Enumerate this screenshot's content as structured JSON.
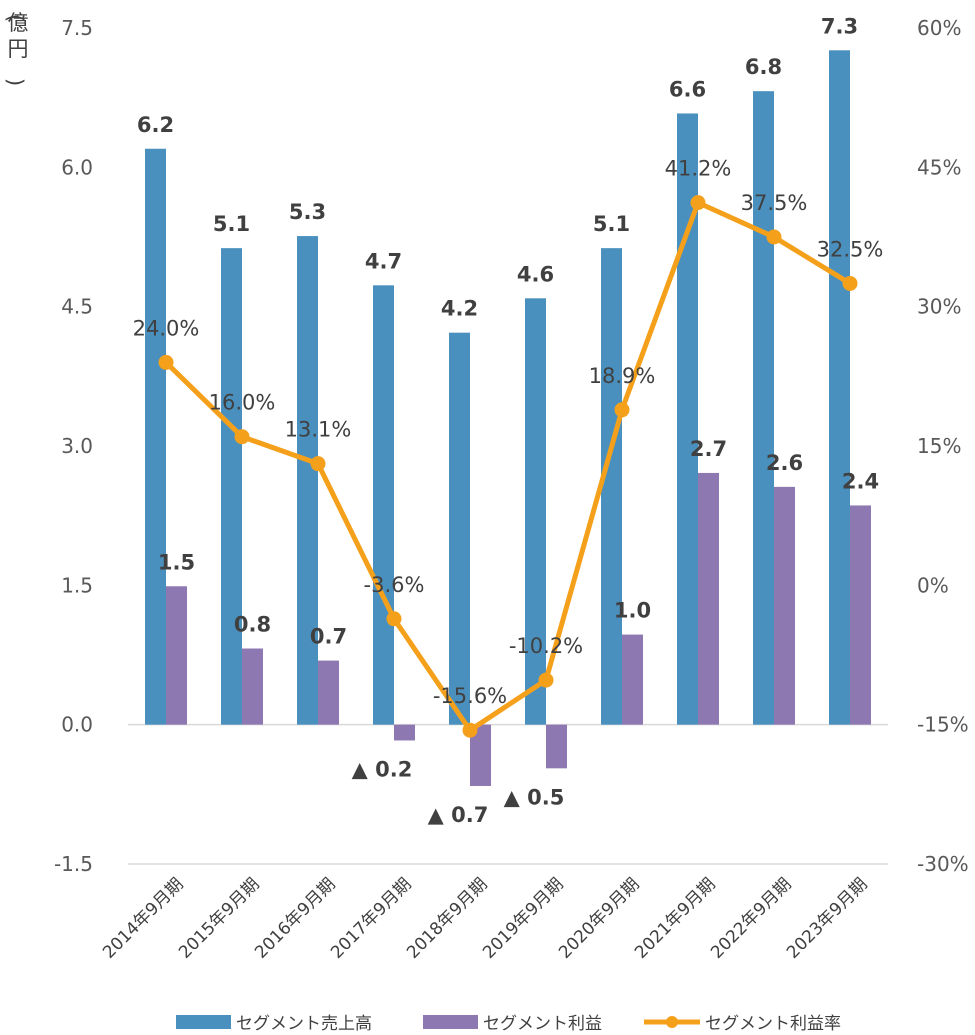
{
  "chart_data": {
    "type": "bar",
    "categories": [
      "2014年9月期",
      "2015年9月期",
      "2016年9月期",
      "2017年9月期",
      "2018年9月期",
      "2019年9月期",
      "2020年9月期",
      "2021年9月期",
      "2022年9月期",
      "2023年9月期"
    ],
    "y_unit_label": "億円",
    "left_axis": {
      "min": -1.5,
      "max": 7.5,
      "ticks": [
        "7.5",
        "6.0",
        "4.5",
        "3.0",
        "1.5",
        "0.0",
        "-1.5"
      ]
    },
    "right_axis": {
      "min": -30,
      "max": 60,
      "ticks": [
        "60%",
        "45%",
        "30%",
        "15%",
        "0%",
        "-15%",
        "-30%"
      ]
    },
    "series": [
      {
        "name": "セグメント売上高",
        "type": "bar",
        "axis": "left",
        "color": "#4A90BE",
        "values": [
          6.2,
          5.13,
          5.26,
          4.73,
          4.22,
          4.59,
          5.13,
          6.58,
          6.82,
          7.26
        ],
        "labels": [
          "6.2",
          "5.1",
          "5.3",
          "4.7",
          "4.2",
          "4.6",
          "5.1",
          "6.6",
          "6.8",
          "7.3"
        ]
      },
      {
        "name": "セグメント利益",
        "type": "bar",
        "axis": "left",
        "color": "#8E78B2",
        "values": [
          1.49,
          0.82,
          0.69,
          -0.17,
          -0.66,
          -0.47,
          0.97,
          2.71,
          2.56,
          2.36
        ],
        "labels": [
          "1.5",
          "0.8",
          "0.7",
          "▲ 0.2",
          "▲ 0.7",
          "▲ 0.5",
          "1.0",
          "2.7",
          "2.6",
          "2.4"
        ]
      },
      {
        "name": "セグメント利益率",
        "type": "line",
        "axis": "right",
        "color": "#F5A01A",
        "values": [
          24.0,
          16.0,
          13.1,
          -3.6,
          -15.6,
          -10.2,
          18.9,
          41.2,
          37.5,
          32.5
        ],
        "labels": [
          "24.0%",
          "16.0%",
          "13.1%",
          "-3.6%",
          "-15.6%",
          "-10.2%",
          "18.9%",
          "41.2%",
          "37.5%",
          "32.5%"
        ]
      }
    ],
    "gridlines": false,
    "legend_position": "bottom"
  }
}
